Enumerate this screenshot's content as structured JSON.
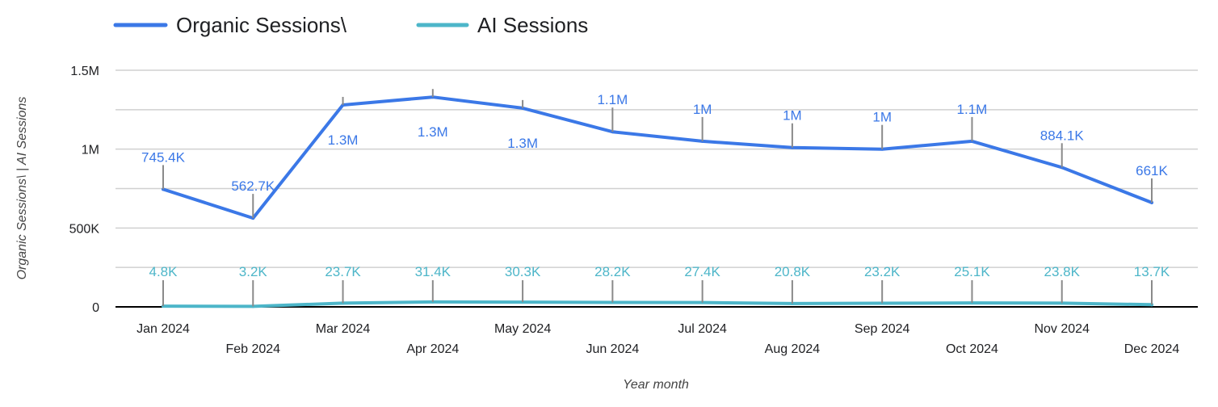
{
  "chart_data": {
    "type": "line",
    "categories": [
      "Jan 2024",
      "Feb 2024",
      "Mar 2024",
      "Apr 2024",
      "May 2024",
      "Jun 2024",
      "Jul 2024",
      "Aug 2024",
      "Sep 2024",
      "Oct 2024",
      "Nov 2024",
      "Dec 2024"
    ],
    "series": [
      {
        "name": "Organic Sessions\\",
        "color": "#3b78e7",
        "values": [
          745400,
          562700,
          1280000,
          1330000,
          1260000,
          1110000,
          1050000,
          1010000,
          1000000,
          1050000,
          884100,
          661000
        ],
        "labels": [
          "745.4K",
          "562.7K",
          "1.3M",
          "1.3M",
          "1.3M",
          "1.1M",
          "1M",
          "1M",
          "1M",
          "1.1M",
          "884.1K",
          "661K"
        ]
      },
      {
        "name": "AI Sessions",
        "color": "#4db6c9",
        "values": [
          4800,
          3200,
          23700,
          31400,
          30300,
          28200,
          27400,
          20800,
          23200,
          25100,
          23800,
          13700
        ],
        "labels": [
          "4.8K",
          "3.2K",
          "23.7K",
          "31.4K",
          "30.3K",
          "28.2K",
          "27.4K",
          "20.8K",
          "23.2K",
          "25.1K",
          "23.8K",
          "13.7K"
        ]
      }
    ],
    "title": "",
    "xlabel": "Year month",
    "ylabel": "Organic Sessions\\ | AI Sessions",
    "ylim": [
      0,
      1500000
    ],
    "yticks": [
      {
        "value": 0,
        "label": "0"
      },
      {
        "value": 500000,
        "label": "500K"
      },
      {
        "value": 1000000,
        "label": "1M"
      },
      {
        "value": 1500000,
        "label": "1.5M"
      }
    ],
    "grid": true,
    "legend_position": "top-left"
  }
}
